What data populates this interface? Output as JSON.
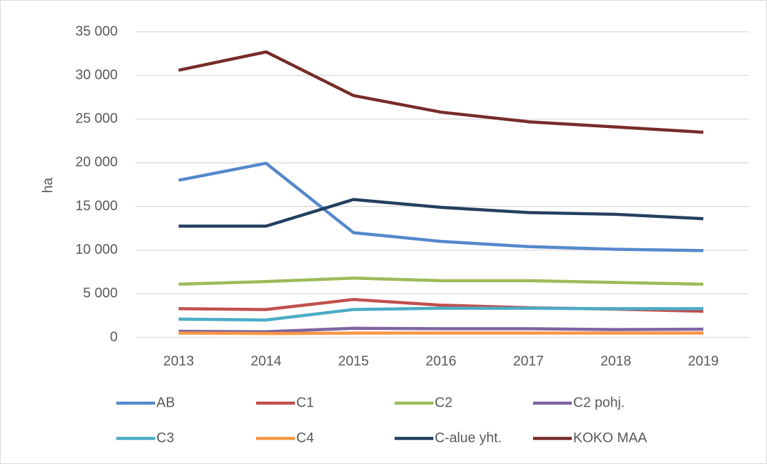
{
  "chart_data": {
    "type": "line",
    "ylabel": "ha",
    "x": [
      "2013",
      "2014",
      "2015",
      "2016",
      "2017",
      "2018",
      "2019"
    ],
    "ylim": [
      0,
      35000
    ],
    "yticks": [
      0,
      {
        "value": 5000,
        "label": "5 000"
      },
      {
        "value": 10000,
        "label": "10 000"
      },
      {
        "value": 15000,
        "label": "15 000"
      },
      {
        "value": 20000,
        "label": "20 000"
      },
      {
        "value": 25000,
        "label": "25 000"
      },
      {
        "value": 30000,
        "label": "30 000"
      },
      {
        "value": 35000,
        "label": "35 000"
      }
    ],
    "grid": true,
    "legend": "bottom",
    "series": [
      {
        "name": "AB",
        "color": "#5588cc",
        "values": [
          18000,
          19950,
          12000,
          11000,
          10400,
          10100,
          9950
        ]
      },
      {
        "name": "C1",
        "color": "#c0504d",
        "values": [
          3300,
          3200,
          4350,
          3700,
          3400,
          3250,
          3000
        ]
      },
      {
        "name": "C2",
        "color": "#9bbb59",
        "values": [
          6100,
          6400,
          6800,
          6500,
          6500,
          6300,
          6100
        ]
      },
      {
        "name": "C2 pohj.",
        "color": "#8064a2",
        "values": [
          700,
          650,
          1050,
          1000,
          1000,
          900,
          950
        ]
      },
      {
        "name": "C3",
        "color": "#4bacc6",
        "values": [
          2100,
          2000,
          3200,
          3350,
          3350,
          3300,
          3300
        ]
      },
      {
        "name": "C4",
        "color": "#f79646",
        "values": [
          500,
          450,
          500,
          500,
          500,
          500,
          500
        ]
      },
      {
        "name": "C-alue yht.",
        "color": "#243f60",
        "values": [
          12750,
          12750,
          15800,
          14900,
          14300,
          14100,
          13600
        ]
      },
      {
        "name": "KOKO MAA",
        "color": "#772c2a",
        "values": [
          30600,
          32700,
          27700,
          25800,
          24700,
          24100,
          23500
        ]
      }
    ]
  }
}
